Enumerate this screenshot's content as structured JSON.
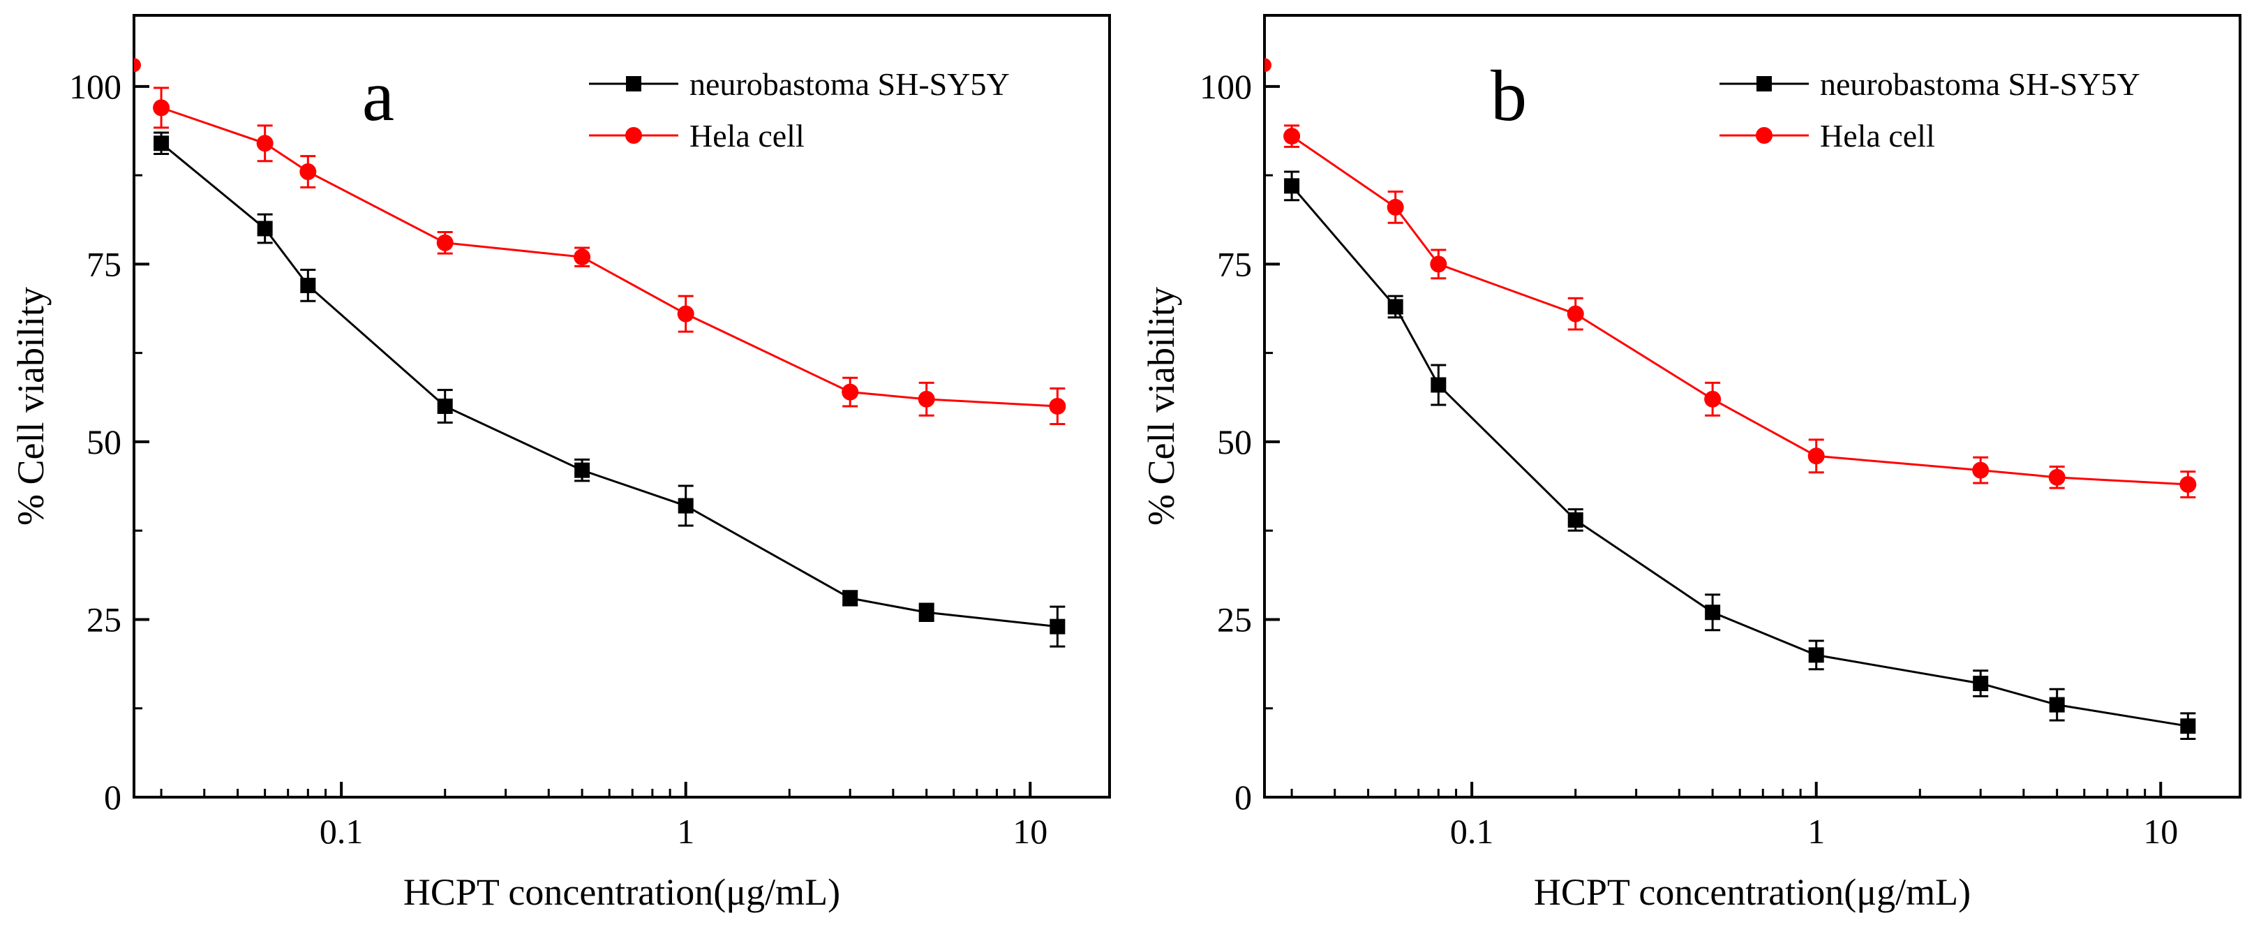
{
  "chart_data": [
    {
      "type": "line",
      "panel_label": "a",
      "xlabel": "HCPT concentration(μg/mL)",
      "ylabel": "% Cell viability",
      "xscale": "log",
      "xlim": [
        0.025,
        17
      ],
      "ylim": [
        0,
        110
      ],
      "xticks": [
        0.1,
        1,
        10
      ],
      "xtick_labels": [
        "0.1",
        "1",
        "10"
      ],
      "yticks": [
        0,
        25,
        50,
        75,
        100
      ],
      "ytick_labels": [
        "0",
        "25",
        "50",
        "75",
        "100"
      ],
      "legend_position": "top-right",
      "x": [
        0.03,
        0.06,
        0.08,
        0.2,
        0.5,
        1,
        3,
        5,
        12
      ],
      "series": [
        {
          "name": "neurobastoma SH-SY5Y",
          "color": "#000000",
          "marker": "square",
          "values": [
            92,
            80,
            72,
            55,
            46,
            41,
            28,
            26,
            24
          ],
          "errors": [
            1.5,
            2,
            2.2,
            2.3,
            1.5,
            2.8,
            1,
            1.2,
            2.8
          ]
        },
        {
          "name": "Hela cell",
          "color": "#ff0000",
          "marker": "circle",
          "values": [
            97,
            92,
            88,
            78,
            76,
            68,
            57,
            56,
            55
          ],
          "errors": [
            2.8,
            2.5,
            2.2,
            1.5,
            1.3,
            2.5,
            2,
            2.3,
            2.5
          ]
        }
      ]
    },
    {
      "type": "line",
      "panel_label": "b",
      "xlabel": "HCPT concentration(μg/mL)",
      "ylabel": "% Cell viability",
      "xscale": "log",
      "xlim": [
        0.025,
        17
      ],
      "ylim": [
        0,
        110
      ],
      "xticks": [
        0.1,
        1,
        10
      ],
      "xtick_labels": [
        "0.1",
        "1",
        "10"
      ],
      "yticks": [
        0,
        25,
        50,
        75,
        100
      ],
      "ytick_labels": [
        "0",
        "25",
        "50",
        "75",
        "100"
      ],
      "legend_position": "top-right",
      "x": [
        0.03,
        0.06,
        0.08,
        0.2,
        0.5,
        1,
        3,
        5,
        12
      ],
      "series": [
        {
          "name": "neurobastoma SH-SY5Y",
          "color": "#000000",
          "marker": "square",
          "values": [
            86,
            69,
            58,
            39,
            26,
            20,
            16,
            13,
            10
          ],
          "errors": [
            2,
            1.5,
            2.8,
            1.5,
            2.5,
            2,
            1.8,
            2.2,
            1.8
          ]
        },
        {
          "name": "Hela cell",
          "color": "#ff0000",
          "marker": "circle",
          "values": [
            93,
            83,
            75,
            68,
            56,
            48,
            46,
            45,
            44
          ],
          "errors": [
            1.5,
            2.2,
            2,
            2.2,
            2.3,
            2.3,
            1.8,
            1.5,
            1.8
          ]
        }
      ]
    }
  ]
}
